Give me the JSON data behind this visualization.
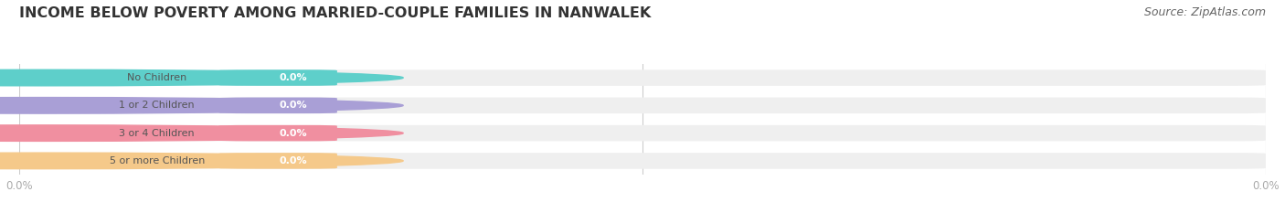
{
  "title": "INCOME BELOW POVERTY AMONG MARRIED-COUPLE FAMILIES IN NANWALEK",
  "source": "Source: ZipAtlas.com",
  "categories": [
    "No Children",
    "1 or 2 Children",
    "3 or 4 Children",
    "5 or more Children"
  ],
  "values": [
    0.0,
    0.0,
    0.0,
    0.0
  ],
  "bar_colors": [
    "#5ecfca",
    "#a99fd6",
    "#f08fa0",
    "#f5c98a"
  ],
  "background_color": "#ffffff",
  "bar_bg_color": "#efefef",
  "title_fontsize": 11.5,
  "source_fontsize": 9,
  "label_text_color": "#555555",
  "value_text_color": "#ffffff",
  "tick_color": "#aaaaaa",
  "grid_color": "#cccccc",
  "pill_white": "#ffffff",
  "xlim": [
    0,
    1
  ]
}
